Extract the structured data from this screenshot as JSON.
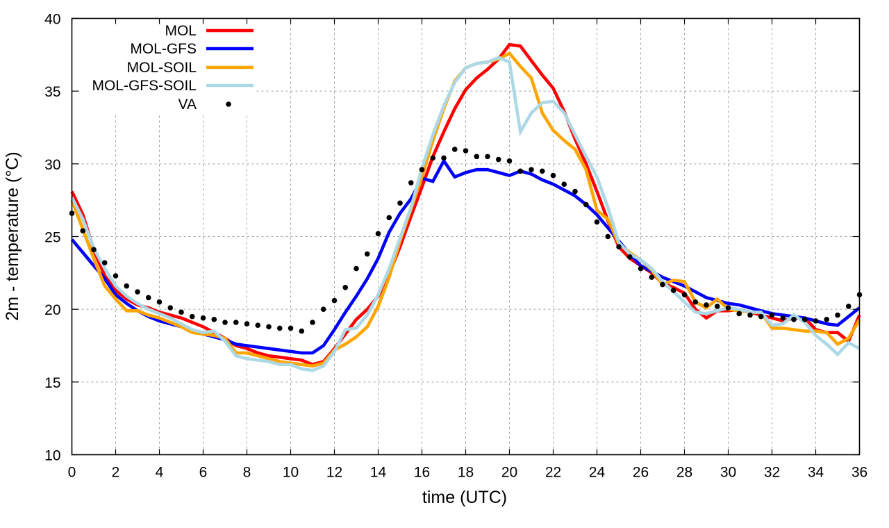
{
  "chart_data": {
    "type": "line",
    "title": "",
    "xlabel": "time (UTC)",
    "ylabel": "2m - temperature (°C)",
    "xlim": [
      0,
      36
    ],
    "ylim": [
      10,
      40
    ],
    "xticks": [
      "0",
      "2",
      "4",
      "6",
      "8",
      "10",
      "12",
      "14",
      "16",
      "18",
      "20",
      "22",
      "24",
      "26",
      "28",
      "30",
      "32",
      "34",
      "36"
    ],
    "yticks": [
      "10",
      "15",
      "20",
      "25",
      "30",
      "35",
      "40"
    ],
    "grid": true,
    "legend_position": "top-left",
    "series": [
      {
        "name": "MOL",
        "color": "#ff0000",
        "style": "line",
        "x": [
          0,
          0.5,
          1,
          1.5,
          2,
          2.5,
          3,
          3.5,
          4,
          4.5,
          5,
          5.5,
          6,
          6.5,
          7,
          7.5,
          8,
          8.5,
          9,
          9.5,
          10,
          10.5,
          11,
          11.5,
          12,
          12.5,
          13,
          13.5,
          14,
          14.5,
          15,
          15.5,
          16,
          16.5,
          17,
          17.5,
          18,
          18.5,
          19,
          19.5,
          20,
          20.5,
          21,
          21.5,
          22,
          22.5,
          23,
          23.5,
          24,
          24.5,
          25,
          25.5,
          26,
          26.5,
          27,
          27.5,
          28,
          28.5,
          29,
          29.5,
          30,
          30.5,
          31,
          31.5,
          32,
          32.5,
          33,
          33.5,
          34,
          34.5,
          35,
          35.5,
          36
        ],
        "values": [
          28.1,
          26.5,
          24.1,
          22.3,
          21.3,
          20.7,
          20.3,
          20.1,
          19.8,
          19.6,
          19.4,
          19.1,
          18.8,
          18.4,
          18.0,
          17.5,
          17.3,
          17.0,
          16.8,
          16.7,
          16.6,
          16.5,
          16.2,
          16.4,
          17.3,
          18.3,
          19.3,
          20.0,
          20.9,
          22.4,
          24.3,
          26.4,
          28.4,
          30.5,
          32.2,
          33.8,
          35.1,
          35.9,
          36.5,
          37.2,
          38.2,
          38.1,
          37.1,
          36.1,
          35.2,
          33.6,
          31.7,
          30.0,
          28.1,
          26.1,
          24.3,
          23.5,
          23.0,
          22.5,
          21.8,
          21.5,
          21.1,
          20.0,
          19.4,
          19.9,
          19.9,
          20.0,
          19.8,
          19.6,
          19.4,
          19.2,
          19.4,
          19.4,
          18.6,
          18.4,
          18.4,
          17.8,
          19.6
        ]
      },
      {
        "name": "MOL-GFS",
        "color": "#0000ff",
        "style": "line",
        "x": [
          0,
          0.5,
          1,
          1.5,
          2,
          2.5,
          3,
          3.5,
          4,
          4.5,
          5,
          5.5,
          6,
          6.5,
          7,
          7.5,
          8,
          8.5,
          9,
          9.5,
          10,
          10.5,
          11,
          11.5,
          12,
          12.5,
          13,
          13.5,
          14,
          14.5,
          15,
          15.5,
          16,
          16.5,
          17,
          17.5,
          18,
          18.5,
          19,
          19.5,
          20,
          20.5,
          21,
          21.5,
          22,
          22.5,
          23,
          23.5,
          24,
          24.5,
          25,
          25.5,
          26,
          26.5,
          27,
          27.5,
          28,
          28.5,
          29,
          29.5,
          30,
          30.5,
          31,
          31.5,
          32,
          32.5,
          33,
          33.5,
          34,
          34.5,
          35,
          35.5,
          36
        ],
        "values": [
          24.8,
          23.9,
          23.0,
          22.1,
          21.0,
          20.4,
          19.9,
          19.5,
          19.2,
          19.0,
          18.8,
          18.5,
          18.3,
          18.1,
          17.9,
          17.6,
          17.5,
          17.4,
          17.3,
          17.2,
          17.1,
          17.0,
          17.0,
          17.5,
          18.6,
          19.8,
          20.9,
          22.1,
          23.5,
          25.3,
          26.6,
          27.6,
          29.0,
          28.8,
          30.2,
          29.1,
          29.4,
          29.6,
          29.6,
          29.4,
          29.2,
          29.5,
          29.3,
          28.9,
          28.6,
          28.2,
          27.8,
          27.2,
          26.5,
          25.6,
          24.7,
          23.8,
          23.0,
          22.6,
          22.2,
          21.9,
          21.6,
          21.2,
          20.8,
          20.6,
          20.4,
          20.3,
          20.1,
          19.9,
          19.7,
          19.6,
          19.5,
          19.4,
          19.2,
          19.0,
          18.9,
          19.5,
          20.1
        ]
      },
      {
        "name": "MOL-SOIL",
        "color": "#ffa500",
        "style": "line",
        "x": [
          0,
          0.5,
          1,
          1.5,
          2,
          2.5,
          3,
          3.5,
          4,
          4.5,
          5,
          5.5,
          6,
          6.5,
          7,
          7.5,
          8,
          8.5,
          9,
          9.5,
          10,
          10.5,
          11,
          11.5,
          12,
          12.5,
          13,
          13.5,
          14,
          14.5,
          15,
          15.5,
          16,
          16.5,
          17,
          17.5,
          18,
          18.5,
          19,
          19.5,
          20,
          20.5,
          21,
          21.5,
          22,
          22.5,
          23,
          23.5,
          24,
          24.5,
          25,
          25.5,
          26,
          26.5,
          27,
          27.5,
          28,
          28.5,
          29,
          29.5,
          30,
          30.5,
          31,
          31.5,
          32,
          32.5,
          33,
          33.5,
          34,
          34.5,
          35,
          35.5,
          36
        ],
        "values": [
          27.5,
          25.5,
          23.5,
          21.6,
          20.7,
          19.9,
          19.9,
          19.6,
          19.4,
          19.1,
          18.8,
          18.4,
          18.3,
          18.2,
          18.0,
          17.0,
          17.0,
          16.8,
          16.6,
          16.4,
          16.3,
          16.2,
          16.1,
          16.3,
          17.2,
          17.6,
          18.1,
          18.8,
          20.2,
          22.2,
          24.7,
          26.9,
          29.1,
          31.6,
          33.8,
          35.7,
          36.6,
          36.9,
          37.0,
          37.2,
          37.6,
          36.7,
          35.9,
          33.5,
          32.3,
          31.6,
          31.0,
          29.6,
          26.8,
          26.2,
          24.5,
          23.9,
          23.4,
          22.7,
          21.7,
          22.0,
          21.9,
          20.5,
          20.1,
          20.7,
          20.0,
          19.9,
          19.8,
          19.8,
          18.7,
          18.7,
          18.6,
          18.5,
          18.5,
          18.4,
          17.6,
          18.0,
          19.3
        ]
      },
      {
        "name": "MOL-GFS-SOIL",
        "color": "#add8e6",
        "style": "line",
        "x": [
          0,
          0.5,
          1,
          1.5,
          2,
          2.5,
          3,
          3.5,
          4,
          4.5,
          5,
          5.5,
          6,
          6.5,
          7,
          7.5,
          8,
          8.5,
          9,
          9.5,
          10,
          10.5,
          11,
          11.5,
          12,
          12.5,
          13,
          13.5,
          14,
          14.5,
          15,
          15.5,
          16,
          16.5,
          17,
          17.5,
          18,
          18.5,
          19,
          19.5,
          20,
          20.5,
          21,
          21.5,
          22,
          22.5,
          23,
          23.5,
          24,
          24.5,
          25,
          25.5,
          26,
          26.5,
          27,
          27.5,
          28,
          28.5,
          29,
          29.5,
          30,
          30.5,
          31,
          31.5,
          32,
          32.5,
          33,
          33.5,
          34,
          34.5,
          35,
          35.5,
          36
        ],
        "values": [
          27.7,
          26.2,
          24.2,
          22.8,
          21.6,
          20.9,
          20.4,
          20.0,
          19.7,
          19.4,
          19.0,
          18.6,
          18.4,
          18.5,
          17.8,
          16.8,
          16.6,
          16.5,
          16.4,
          16.2,
          16.2,
          15.9,
          15.8,
          16.1,
          17.1,
          18.6,
          18.7,
          19.6,
          21.0,
          22.8,
          24.9,
          27.0,
          29.7,
          32.0,
          34.0,
          35.6,
          36.6,
          36.9,
          37.0,
          37.3,
          37.0,
          32.2,
          33.5,
          34.2,
          34.3,
          33.5,
          32.0,
          30.5,
          29.1,
          27.0,
          24.6,
          23.8,
          23.4,
          22.8,
          21.9,
          21.2,
          20.5,
          19.8,
          19.7,
          19.9,
          20.1,
          20.0,
          19.8,
          19.8,
          18.9,
          19.0,
          19.6,
          19.1,
          18.2,
          17.6,
          16.9,
          17.7,
          17.3
        ]
      },
      {
        "name": "VA",
        "color": "#000000",
        "style": "points",
        "x": [
          0,
          0.5,
          1,
          1.5,
          2,
          2.5,
          3,
          3.5,
          4,
          4.5,
          5,
          5.5,
          6,
          6.5,
          7,
          7.5,
          8,
          8.5,
          9,
          9.5,
          10,
          10.5,
          11,
          11.5,
          12,
          12.5,
          13,
          13.5,
          14,
          14.5,
          15,
          15.5,
          16,
          16.5,
          17,
          17.5,
          18,
          18.5,
          19,
          19.5,
          20,
          20.5,
          21,
          21.5,
          22,
          22.5,
          23,
          23.5,
          24,
          24.5,
          25,
          25.5,
          26,
          26.5,
          27,
          27.5,
          28,
          28.5,
          29,
          29.5,
          30,
          30.5,
          31,
          31.5,
          32,
          32.5,
          33,
          33.5,
          34,
          34.5,
          35,
          35.5,
          36
        ],
        "values": [
          26.6,
          25.4,
          24.1,
          23.2,
          22.3,
          21.6,
          21.2,
          20.8,
          20.5,
          20.1,
          19.8,
          19.5,
          19.4,
          19.3,
          19.1,
          19.1,
          19.0,
          18.9,
          18.8,
          18.7,
          18.7,
          18.5,
          19.1,
          20.0,
          20.6,
          21.5,
          22.8,
          23.8,
          25.2,
          26.3,
          27.3,
          28.7,
          29.6,
          30.4,
          30.4,
          31.0,
          30.9,
          30.5,
          30.5,
          30.3,
          30.2,
          29.5,
          29.6,
          29.5,
          29.2,
          28.6,
          28.1,
          27.2,
          26.0,
          25.0,
          24.3,
          23.6,
          22.8,
          22.2,
          21.7,
          21.3,
          21.0,
          20.5,
          20.3,
          20.2,
          20.1,
          19.7,
          19.6,
          19.5,
          19.6,
          19.4,
          19.3,
          19.3,
          19.2,
          19.3,
          19.6,
          20.2,
          21.0
        ]
      }
    ]
  }
}
